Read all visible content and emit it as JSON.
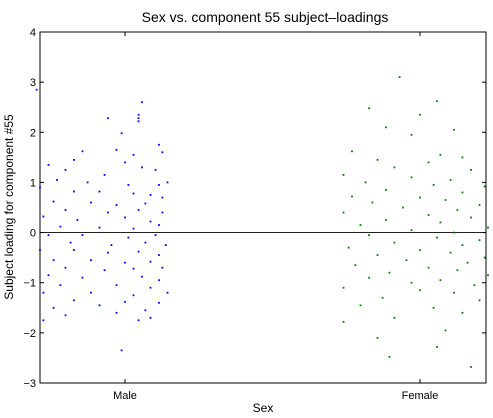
{
  "chart_data": {
    "type": "scatter",
    "title": "Sex vs. component 55 subject–loadings",
    "xlabel": "Sex",
    "ylabel": "Subject loading for component #55",
    "categories": [
      "Male",
      "Female"
    ],
    "ylim": [
      -3,
      4
    ],
    "yticks": [
      "−3",
      "−2",
      "−1",
      "0",
      "1",
      "2",
      "3",
      "4"
    ],
    "ytick_values": [
      -3,
      -2,
      -1,
      0,
      1,
      2,
      3,
      4
    ],
    "reference_line": 0,
    "grid": false,
    "series": [
      {
        "color": "#0000ff",
        "category": "Male",
        "points": [
          [
            -0.52,
            2.85
          ],
          [
            0.1,
            2.6
          ],
          [
            0.08,
            2.28
          ],
          [
            0.08,
            2.35
          ],
          [
            0.08,
            2.22
          ],
          [
            -0.1,
            2.28
          ],
          [
            -0.02,
            1.98
          ],
          [
            -0.25,
            1.62
          ],
          [
            0.05,
            1.55
          ],
          [
            -0.05,
            1.65
          ],
          [
            0.2,
            1.75
          ],
          [
            0.22,
            1.6
          ],
          [
            -0.3,
            1.45
          ],
          [
            0.0,
            1.4
          ],
          [
            -0.45,
            1.35
          ],
          [
            -0.35,
            1.25
          ],
          [
            -0.12,
            1.15
          ],
          [
            0.1,
            1.3
          ],
          [
            0.18,
            1.25
          ],
          [
            -0.4,
            1.05
          ],
          [
            -0.22,
            1.0
          ],
          [
            0.02,
            0.95
          ],
          [
            0.2,
            0.95
          ],
          [
            0.25,
            1.0
          ],
          [
            -0.5,
            0.9
          ],
          [
            -0.3,
            0.82
          ],
          [
            -0.15,
            0.82
          ],
          [
            0.05,
            0.78
          ],
          [
            0.15,
            0.75
          ],
          [
            0.22,
            0.7
          ],
          [
            -0.42,
            0.62
          ],
          [
            -0.2,
            0.6
          ],
          [
            -0.05,
            0.55
          ],
          [
            0.12,
            0.58
          ],
          [
            -0.35,
            0.45
          ],
          [
            -0.1,
            0.4
          ],
          [
            0.08,
            0.45
          ],
          [
            0.22,
            0.4
          ],
          [
            -0.48,
            0.32
          ],
          [
            -0.28,
            0.25
          ],
          [
            0.0,
            0.3
          ],
          [
            0.15,
            0.22
          ],
          [
            -0.38,
            0.12
          ],
          [
            -0.15,
            0.1
          ],
          [
            0.05,
            0.08
          ],
          [
            0.2,
            0.15
          ],
          [
            -0.45,
            -0.05
          ],
          [
            -0.25,
            -0.05
          ],
          [
            0.02,
            -0.1
          ],
          [
            0.18,
            -0.05
          ],
          [
            -0.32,
            -0.2
          ],
          [
            -0.08,
            -0.25
          ],
          [
            0.12,
            -0.2
          ],
          [
            0.24,
            -0.25
          ],
          [
            -0.5,
            -0.35
          ],
          [
            -0.3,
            -0.35
          ],
          [
            -0.1,
            -0.4
          ],
          [
            0.08,
            -0.38
          ],
          [
            0.2,
            -0.45
          ],
          [
            -0.42,
            -0.55
          ],
          [
            -0.2,
            -0.55
          ],
          [
            0.0,
            -0.6
          ],
          [
            0.15,
            -0.58
          ],
          [
            -0.35,
            -0.7
          ],
          [
            -0.12,
            -0.75
          ],
          [
            0.05,
            -0.72
          ],
          [
            0.22,
            -0.7
          ],
          [
            -0.45,
            -0.85
          ],
          [
            -0.25,
            -0.9
          ],
          [
            0.1,
            -0.88
          ],
          [
            0.2,
            -0.95
          ],
          [
            -0.38,
            -1.05
          ],
          [
            -0.05,
            -1.05
          ],
          [
            0.15,
            -1.1
          ],
          [
            -0.48,
            -1.2
          ],
          [
            -0.2,
            -1.2
          ],
          [
            0.05,
            -1.25
          ],
          [
            0.25,
            -1.2
          ],
          [
            -0.3,
            -1.35
          ],
          [
            0.0,
            -1.38
          ],
          [
            0.2,
            -1.4
          ],
          [
            -0.42,
            -1.5
          ],
          [
            -0.15,
            -1.45
          ],
          [
            0.12,
            -1.55
          ],
          [
            -0.35,
            -1.65
          ],
          [
            -0.05,
            -1.6
          ],
          [
            0.15,
            -1.7
          ],
          [
            -0.48,
            -1.75
          ],
          [
            0.08,
            -1.75
          ],
          [
            -0.02,
            -2.35
          ]
        ]
      },
      {
        "color": "#008000",
        "category": "Female",
        "points": [
          [
            -0.12,
            3.1
          ],
          [
            -0.3,
            2.48
          ],
          [
            0.1,
            2.62
          ],
          [
            0.0,
            2.35
          ],
          [
            -0.2,
            2.1
          ],
          [
            0.2,
            2.05
          ],
          [
            -0.05,
            1.95
          ],
          [
            -0.4,
            1.62
          ],
          [
            0.12,
            1.55
          ],
          [
            0.25,
            1.5
          ],
          [
            -0.25,
            1.45
          ],
          [
            0.05,
            1.4
          ],
          [
            -0.15,
            1.3
          ],
          [
            0.3,
            1.25
          ],
          [
            -0.45,
            1.15
          ],
          [
            -0.05,
            1.1
          ],
          [
            0.18,
            1.05
          ],
          [
            -0.32,
            1.0
          ],
          [
            0.08,
            0.95
          ],
          [
            0.38,
            0.92
          ],
          [
            -0.2,
            0.85
          ],
          [
            0.25,
            0.8
          ],
          [
            -0.4,
            0.72
          ],
          [
            0.0,
            0.7
          ],
          [
            0.15,
            0.65
          ],
          [
            -0.28,
            0.6
          ],
          [
            0.35,
            0.55
          ],
          [
            -0.1,
            0.5
          ],
          [
            0.22,
            0.45
          ],
          [
            -0.45,
            0.4
          ],
          [
            0.05,
            0.35
          ],
          [
            0.3,
            0.3
          ],
          [
            -0.2,
            0.25
          ],
          [
            0.12,
            0.2
          ],
          [
            -0.35,
            0.15
          ],
          [
            0.4,
            0.1
          ],
          [
            -0.05,
            0.05
          ],
          [
            0.2,
            0.0
          ],
          [
            -0.3,
            -0.05
          ],
          [
            0.1,
            -0.1
          ],
          [
            0.35,
            -0.15
          ],
          [
            -0.15,
            -0.2
          ],
          [
            0.25,
            -0.25
          ],
          [
            -0.42,
            -0.3
          ],
          [
            0.0,
            -0.35
          ],
          [
            0.18,
            -0.4
          ],
          [
            -0.25,
            -0.45
          ],
          [
            0.38,
            -0.5
          ],
          [
            -0.08,
            -0.55
          ],
          [
            0.28,
            -0.6
          ],
          [
            -0.38,
            -0.65
          ],
          [
            0.05,
            -0.7
          ],
          [
            0.22,
            -0.75
          ],
          [
            -0.18,
            -0.8
          ],
          [
            0.4,
            -0.85
          ],
          [
            -0.3,
            -0.9
          ],
          [
            0.12,
            -0.95
          ],
          [
            -0.05,
            -1.0
          ],
          [
            0.32,
            -1.05
          ],
          [
            -0.45,
            -1.1
          ],
          [
            0.0,
            -1.15
          ],
          [
            0.2,
            -1.2
          ],
          [
            -0.22,
            -1.3
          ],
          [
            0.35,
            -1.35
          ],
          [
            -0.35,
            -1.45
          ],
          [
            0.08,
            -1.5
          ],
          [
            0.25,
            -1.6
          ],
          [
            -0.15,
            -1.7
          ],
          [
            -0.45,
            -1.78
          ],
          [
            0.15,
            -1.95
          ],
          [
            -0.25,
            -2.1
          ],
          [
            0.1,
            -2.28
          ],
          [
            -0.18,
            -2.48
          ],
          [
            0.3,
            -2.68
          ]
        ]
      }
    ]
  }
}
